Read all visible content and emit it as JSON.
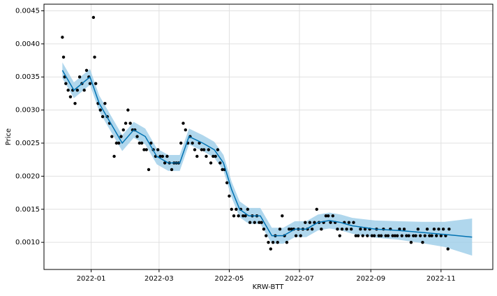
{
  "chart_data": {
    "type": "forecast",
    "xlabel": "KRW-BTT",
    "ylabel": "Price",
    "xlim": [
      18952,
      19342
    ],
    "ylim": [
      0.00059,
      0.0046
    ],
    "grid": true,
    "xticks": [
      {
        "value": 18993,
        "label": "2022-01"
      },
      {
        "value": 19052,
        "label": "2022-03"
      },
      {
        "value": 19113,
        "label": "2022-05"
      },
      {
        "value": 19174,
        "label": "2022-07"
      },
      {
        "value": 19236,
        "label": "2022-09"
      },
      {
        "value": 19297,
        "label": "2022-11"
      }
    ],
    "yticks": [
      {
        "value": 0.001,
        "label": "0.0010"
      },
      0.0015,
      {
        "value": 0.002,
        "label": "0.0020"
      },
      0.0025,
      {
        "value": 0.003,
        "label": "0.0030"
      },
      0.0035,
      {
        "value": 0.004,
        "label": "0.0040"
      },
      0.0045
    ],
    "series": [
      {
        "type": "scatter",
        "color": "#000000",
        "x": [
          18968,
          18969,
          18970,
          18971,
          18973,
          18975,
          18977,
          18979,
          18981,
          18983,
          18985,
          18987,
          18989,
          18991,
          18992,
          18995,
          18996,
          18997,
          18999,
          19001,
          19003,
          19005,
          19007,
          19009,
          19011,
          19013,
          19015,
          19017,
          19019,
          19021,
          19023,
          19025,
          19027,
          19029,
          19031,
          19033,
          19035,
          19037,
          19039,
          19041,
          19043,
          19045,
          19047,
          19049,
          19051,
          19053,
          19055,
          19057,
          19059,
          19061,
          19063,
          19065,
          19067,
          19069,
          19071,
          19073,
          19075,
          19077,
          19079,
          19081,
          19083,
          19085,
          19087,
          19089,
          19091,
          19093,
          19095,
          19097,
          19099,
          19101,
          19103,
          19105,
          19107,
          19109,
          19111,
          19113,
          19115,
          19117,
          19119,
          19121,
          19123,
          19125,
          19127,
          19129,
          19131,
          19133,
          19135,
          19137,
          19139,
          19141,
          19143,
          19145,
          19147,
          19149,
          19151,
          19153,
          19155,
          19157,
          19159,
          19161,
          19163,
          19165,
          19167,
          19169,
          19171,
          19173,
          19175,
          19177,
          19179,
          19181,
          19183,
          19185,
          19187,
          19189,
          19191,
          19193,
          19195,
          19197,
          19199,
          19201,
          19203,
          19205,
          19207,
          19209,
          19211,
          19213,
          19215,
          19217,
          19219,
          19221,
          19223,
          19225,
          19227,
          19229,
          19231,
          19233,
          19235,
          19237,
          19239,
          19241,
          19243,
          19245,
          19247,
          19249,
          19251,
          19253,
          19255,
          19257,
          19259,
          19261,
          19263,
          19265,
          19267,
          19269,
          19271,
          19273,
          19275,
          19277,
          19279,
          19281,
          19283,
          19285,
          19287,
          19289,
          19291,
          19293,
          19295,
          19297,
          19299,
          19301,
          19303,
          19304
        ],
        "values": [
          0.0041,
          0.0038,
          0.0035,
          0.0034,
          0.0033,
          0.0032,
          0.0033,
          0.0031,
          0.0033,
          0.0035,
          0.0034,
          0.0033,
          0.0036,
          0.0035,
          0.0034,
          0.0044,
          0.0038,
          0.0034,
          0.0031,
          0.003,
          0.0029,
          0.0031,
          0.0029,
          0.0028,
          0.0026,
          0.0023,
          0.0025,
          0.0025,
          0.0026,
          0.0027,
          0.0028,
          0.003,
          0.0028,
          0.0027,
          0.0027,
          0.0026,
          0.0025,
          0.0025,
          0.0024,
          0.0024,
          0.0021,
          0.0025,
          0.0024,
          0.0023,
          0.0024,
          0.0023,
          0.0023,
          0.0022,
          0.0023,
          0.0022,
          0.0021,
          0.0022,
          0.0022,
          0.0022,
          0.0025,
          0.0028,
          0.0027,
          0.0025,
          0.0026,
          0.0025,
          0.0024,
          0.0023,
          0.0025,
          0.0024,
          0.0024,
          0.0023,
          0.0024,
          0.0022,
          0.0023,
          0.0023,
          0.0024,
          0.0022,
          0.0021,
          0.0021,
          0.0019,
          0.0017,
          0.0015,
          0.0014,
          0.0015,
          0.0014,
          0.0015,
          0.0014,
          0.0014,
          0.0015,
          0.0013,
          0.0014,
          0.0013,
          0.0014,
          0.0013,
          0.0013,
          0.0012,
          0.0011,
          0.001,
          0.0009,
          0.001,
          0.0011,
          0.001,
          0.0012,
          0.0014,
          0.0011,
          0.001,
          0.0012,
          0.0012,
          0.0012,
          0.0011,
          0.0012,
          0.0011,
          0.0012,
          0.0013,
          0.0012,
          0.0013,
          0.0012,
          0.0013,
          0.0015,
          0.0013,
          0.0012,
          0.0013,
          0.0014,
          0.0014,
          0.0013,
          0.0014,
          0.0013,
          0.0012,
          0.0011,
          0.0012,
          0.0013,
          0.0012,
          0.0013,
          0.0012,
          0.0013,
          0.0011,
          0.0011,
          0.0012,
          0.0011,
          0.0012,
          0.0011,
          0.0012,
          0.0011,
          0.0011,
          0.0012,
          0.0011,
          0.0011,
          0.0012,
          0.0011,
          0.0011,
          0.0012,
          0.0011,
          0.0011,
          0.0011,
          0.0012,
          0.0011,
          0.0012,
          0.0011,
          0.0011,
          0.001,
          0.0011,
          0.0011,
          0.0012,
          0.0011,
          0.001,
          0.0011,
          0.0012,
          0.0011,
          0.0011,
          0.0012,
          0.0011,
          0.0012,
          0.0011,
          0.0012,
          0.0011,
          0.0009,
          0.0012
        ]
      },
      {
        "type": "line",
        "color": "#0072B2",
        "band_color": "#9ccde8",
        "x": [
          18968,
          18978,
          18985,
          18992,
          19000,
          19010,
          19020,
          19030,
          19040,
          19050,
          19060,
          19070,
          19078,
          19090,
          19100,
          19108,
          19115,
          19122,
          19130,
          19140,
          19150,
          19160,
          19170,
          19180,
          19190,
          19200,
          19210,
          19220,
          19240,
          19260,
          19280,
          19300,
          19324
        ],
        "values": [
          0.0036,
          0.0033,
          0.0034,
          0.0035,
          0.0031,
          0.0028,
          0.0025,
          0.0027,
          0.0026,
          0.0023,
          0.0022,
          0.0022,
          0.0026,
          0.0025,
          0.0024,
          0.0022,
          0.0018,
          0.0015,
          0.0014,
          0.0014,
          0.0011,
          0.0011,
          0.0012,
          0.0012,
          0.0013,
          0.00133,
          0.0013,
          0.00125,
          0.0012,
          0.00118,
          0.00115,
          0.00112,
          0.00108
        ],
        "lower": [
          0.00348,
          0.00318,
          0.00328,
          0.00338,
          0.00298,
          0.00268,
          0.00238,
          0.00258,
          0.00248,
          0.00218,
          0.00208,
          0.00208,
          0.00248,
          0.00238,
          0.00228,
          0.00208,
          0.00168,
          0.00138,
          0.00128,
          0.00128,
          0.00098,
          0.00098,
          0.00108,
          0.00108,
          0.00118,
          0.00121,
          0.00118,
          0.00113,
          0.00107,
          0.00104,
          0.00099,
          0.00093,
          0.0008
        ],
        "upper": [
          0.00372,
          0.00342,
          0.00352,
          0.00362,
          0.00322,
          0.00292,
          0.00262,
          0.00282,
          0.00272,
          0.00242,
          0.00232,
          0.00232,
          0.00272,
          0.00262,
          0.00252,
          0.00232,
          0.00192,
          0.00162,
          0.00152,
          0.00152,
          0.00122,
          0.00122,
          0.00132,
          0.00132,
          0.00142,
          0.00145,
          0.00142,
          0.00137,
          0.00133,
          0.00132,
          0.00131,
          0.00131,
          0.00136
        ]
      }
    ]
  }
}
